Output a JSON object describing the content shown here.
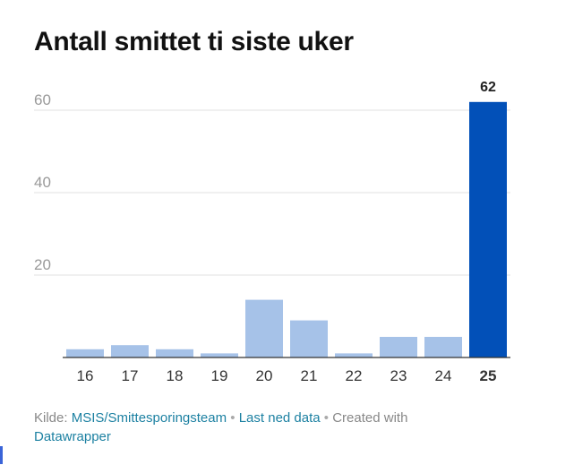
{
  "title": "Antall smittet ti siste uker",
  "chart_data": {
    "type": "bar",
    "title": "Antall smittet ti siste uker",
    "xlabel": "",
    "ylabel": "",
    "categories": [
      "16",
      "17",
      "18",
      "19",
      "20",
      "21",
      "22",
      "23",
      "24",
      "25"
    ],
    "values": [
      2,
      3,
      2,
      1,
      14,
      9,
      1,
      5,
      5,
      62
    ],
    "ylim": [
      0,
      62
    ],
    "yticks": [
      20,
      40,
      60
    ],
    "grid": true,
    "highlight_index": 9,
    "value_labels": {
      "9": "62"
    },
    "colors": {
      "bar": "#a6c2e8",
      "highlight": "#0250b8",
      "grid": "#e0e0e0",
      "axis": "#333333",
      "tick_label": "#999999",
      "category_label": "#333333"
    }
  },
  "footer": {
    "source_prefix": "Kilde: ",
    "source_link": "MSIS/Smittesporingsteam",
    "separator": " • ",
    "download_link": "Last ned data",
    "created_with": "Created with",
    "tool_link": "Datawrapper"
  }
}
